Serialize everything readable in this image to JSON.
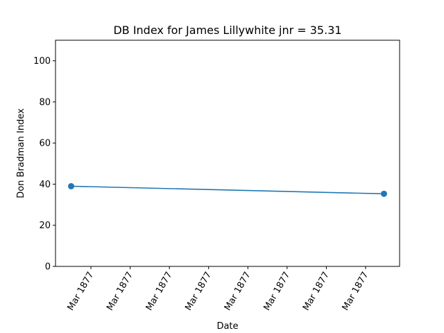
{
  "chart_data": {
    "type": "line",
    "title": "DB Index for James Lillywhite jnr = 35.31",
    "xlabel": "Date",
    "ylabel": "Don Bradman Index",
    "ylim": [
      0,
      110
    ],
    "yticks": [
      0,
      20,
      40,
      60,
      80,
      100
    ],
    "xticks": [
      "Mar 1877",
      "Mar 1877",
      "Mar 1877",
      "Mar 1877",
      "Mar 1877",
      "Mar 1877",
      "Mar 1877",
      "Mar 1877"
    ],
    "grid": false,
    "series": [
      {
        "color": "#1f77b4",
        "marker": "circle",
        "points": [
          {
            "x": "1877-03-15",
            "y": 39.0
          },
          {
            "x": "1877-03-19",
            "y": 35.31
          }
        ]
      }
    ]
  }
}
